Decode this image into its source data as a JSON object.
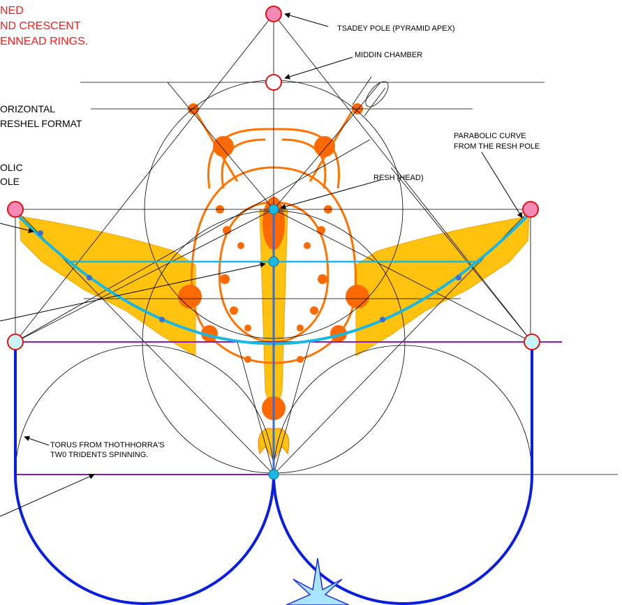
{
  "title_note": {
    "lines": [
      "NED",
      "ND CRESCENT",
      "ENNEAD RINGS."
    ]
  },
  "labels": [
    {
      "lines": [
        "TSADEY POLE (PYRAMID APEX)"
      ]
    },
    {
      "lines": [
        "MIDDIN CHAMBER"
      ]
    },
    {
      "lines": [
        "ORIZONTAL",
        "RESHEL FORMAT"
      ]
    },
    {
      "lines": [
        "PARABOLIC CURVE",
        "FROM THE RESH POLE"
      ]
    },
    {
      "lines": [
        "OLIC",
        "OLE"
      ]
    },
    {
      "lines": [
        "RESH (HEAD)"
      ]
    },
    {
      "lines": [
        "TORUS FROM THOTHHORRA'S",
        "TW0 TRIDENTS SPINNING."
      ]
    }
  ]
}
